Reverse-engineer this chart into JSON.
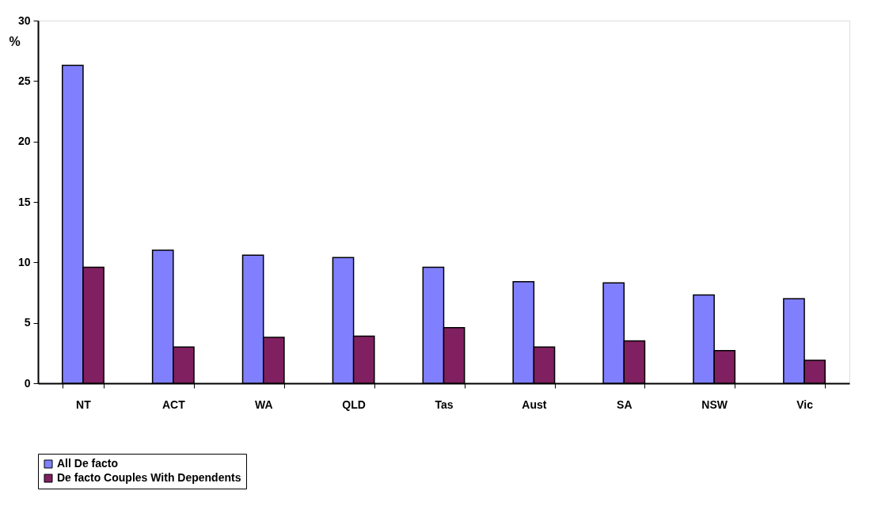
{
  "chart_data": {
    "type": "bar",
    "ylabel": "%",
    "categories": [
      "NT",
      "ACT",
      "WA",
      "QLD",
      "Tas",
      "Aust",
      "SA",
      "NSW",
      "Vic"
    ],
    "series": [
      {
        "name": "All De facto",
        "color": "#8080ff",
        "values": [
          26.3,
          11.0,
          10.6,
          10.4,
          9.6,
          8.4,
          8.3,
          7.3,
          7.0
        ]
      },
      {
        "name": "De facto Couples With Dependents",
        "color": "#802060",
        "values": [
          9.6,
          3.0,
          3.8,
          3.9,
          4.6,
          3.0,
          3.5,
          2.7,
          1.9
        ]
      }
    ],
    "ylim": [
      0,
      30
    ],
    "yticks": [
      0,
      5,
      10,
      15,
      20,
      25,
      30
    ],
    "grid": false,
    "legend": "bottom"
  }
}
